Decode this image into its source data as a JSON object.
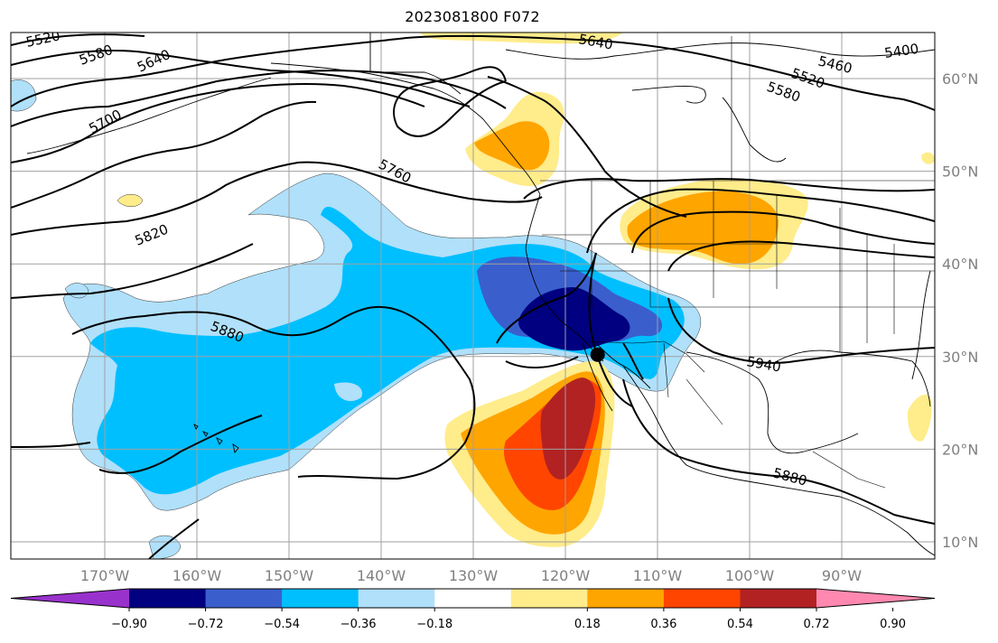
{
  "title": "2023081800 F072",
  "map": {
    "lat_labels": [
      {
        "text": "60°N",
        "lat": 60
      },
      {
        "text": "50°N",
        "lat": 50
      },
      {
        "text": "40°N",
        "lat": 40
      },
      {
        "text": "30°N",
        "lat": 30
      },
      {
        "text": "20°N",
        "lat": 20
      },
      {
        "text": "10°N",
        "lat": 10
      }
    ],
    "lon_labels": [
      {
        "text": "170°W",
        "lon": -170
      },
      {
        "text": "160°W",
        "lon": -160
      },
      {
        "text": "150°W",
        "lon": -150
      },
      {
        "text": "140°W",
        "lon": -140
      },
      {
        "text": "130°W",
        "lon": -130
      },
      {
        "text": "120°W",
        "lon": -120
      },
      {
        "text": "110°W",
        "lon": -110
      },
      {
        "text": "100°W",
        "lon": -100
      },
      {
        "text": "90°W",
        "lon": -90
      }
    ],
    "contour_labels": [
      "5520",
      "5580",
      "5640",
      "5700",
      "5760",
      "5820",
      "5880",
      "5640",
      "5460",
      "5400",
      "5520",
      "5580",
      "5940",
      "5880"
    ],
    "marker": {
      "name": "storm-center-marker",
      "lat": 30.2,
      "lon": -116.5
    }
  },
  "colorbar": {
    "ticks": [
      "−0.90",
      "−0.72",
      "−0.54",
      "−0.36",
      "−0.18",
      "0.18",
      "0.36",
      "0.54",
      "0.72",
      "0.90"
    ],
    "colors": {
      "under": "#9932cc",
      "bins": [
        "#000080",
        "#3a5fcd",
        "#00bfff",
        "#b0e0fa",
        "#ffffff",
        "#ffec8b",
        "#ffa500",
        "#ff4500",
        "#b22222"
      ],
      "over": "#ff88b0"
    }
  }
}
